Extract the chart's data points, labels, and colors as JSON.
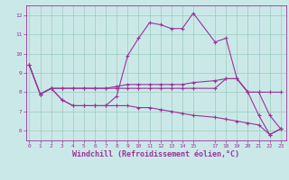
{
  "bg_color": "#cbe8e8",
  "line_color": "#993399",
  "grid_color": "#99ccbb",
  "xlabel": "Windchill (Refroidissement éolien,°C)",
  "xlabel_fontsize": 6,
  "yticks": [
    6,
    7,
    8,
    9,
    10,
    11,
    12
  ],
  "xticks": [
    0,
    1,
    2,
    3,
    4,
    5,
    6,
    7,
    8,
    9,
    10,
    11,
    12,
    13,
    14,
    15,
    17,
    18,
    19,
    20,
    21,
    22,
    23
  ],
  "ylim": [
    5.5,
    12.5
  ],
  "xlim": [
    -0.3,
    23.5
  ],
  "line1_x": [
    0,
    1,
    2,
    3,
    4,
    5,
    6,
    7,
    8,
    9,
    10,
    11,
    12,
    13,
    14,
    15,
    17,
    18,
    19,
    20,
    21,
    22,
    23
  ],
  "line1_y": [
    9.4,
    7.9,
    8.2,
    8.2,
    8.2,
    8.2,
    8.2,
    8.2,
    8.3,
    8.4,
    8.4,
    8.4,
    8.4,
    8.4,
    8.4,
    8.5,
    8.6,
    8.7,
    8.7,
    8.0,
    8.0,
    6.8,
    6.1
  ],
  "line2_x": [
    0,
    1,
    2,
    3,
    4,
    5,
    6,
    7,
    8,
    9,
    10,
    11,
    12,
    13,
    14,
    15,
    17,
    18,
    19,
    20,
    21,
    22,
    23
  ],
  "line2_y": [
    9.4,
    7.9,
    8.2,
    7.6,
    7.3,
    7.3,
    7.3,
    7.3,
    7.8,
    9.9,
    10.8,
    11.6,
    11.5,
    11.3,
    11.3,
    12.1,
    10.6,
    10.8,
    8.7,
    8.0,
    6.8,
    5.8,
    6.1
  ],
  "line3_x": [
    0,
    1,
    2,
    3,
    4,
    5,
    6,
    7,
    8,
    9,
    10,
    11,
    12,
    13,
    14,
    15,
    17,
    18,
    19,
    20,
    21,
    22,
    23
  ],
  "line3_y": [
    9.4,
    7.9,
    8.2,
    8.2,
    8.2,
    8.2,
    8.2,
    8.2,
    8.2,
    8.2,
    8.2,
    8.2,
    8.2,
    8.2,
    8.2,
    8.2,
    8.2,
    8.7,
    8.7,
    8.0,
    8.0,
    8.0,
    8.0
  ],
  "line4_x": [
    1,
    2,
    3,
    4,
    5,
    6,
    7,
    8,
    9,
    10,
    11,
    12,
    13,
    14,
    15,
    17,
    18,
    19,
    20,
    21,
    22,
    23
  ],
  "line4_y": [
    7.9,
    8.2,
    7.6,
    7.3,
    7.3,
    7.3,
    7.3,
    7.3,
    7.3,
    7.2,
    7.2,
    7.1,
    7.0,
    6.9,
    6.8,
    6.7,
    6.6,
    6.5,
    6.4,
    6.3,
    5.8,
    6.1
  ]
}
